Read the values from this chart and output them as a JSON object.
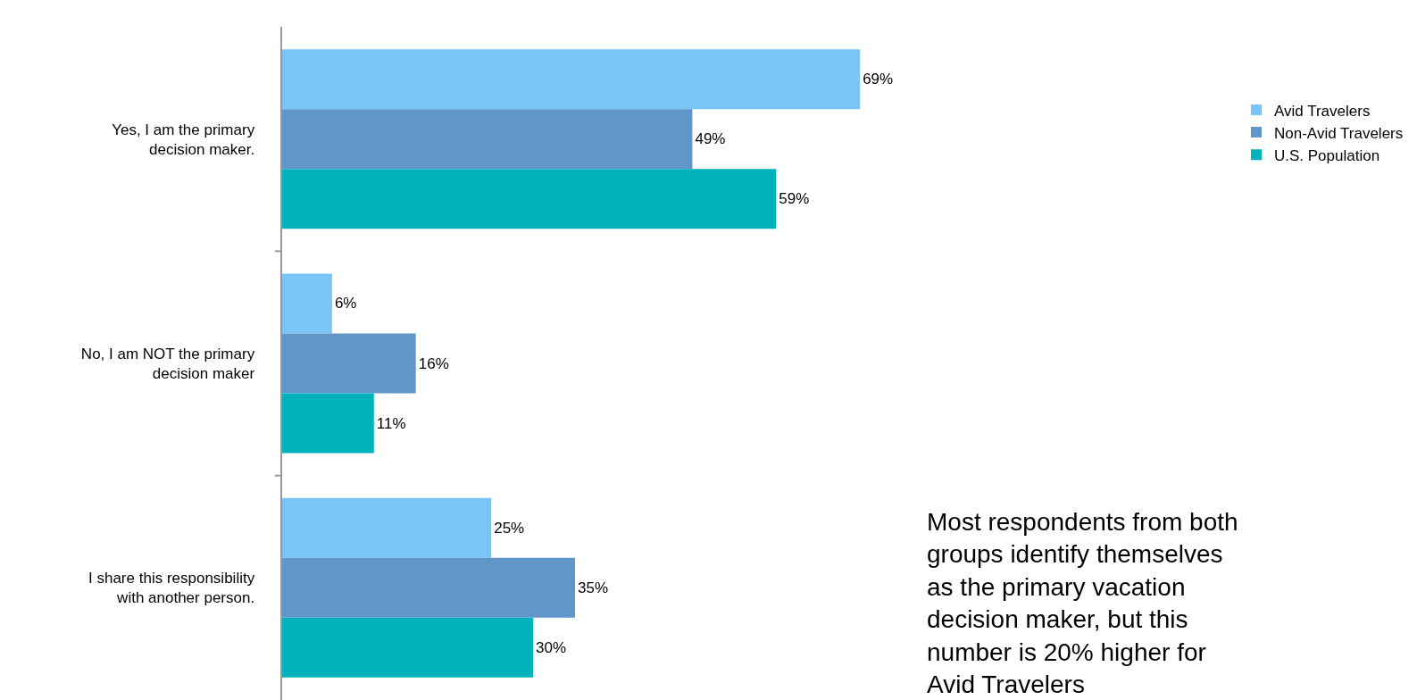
{
  "chart_data": {
    "type": "bar",
    "orientation": "horizontal",
    "categories": [
      "Yes, I am the primary decision maker.",
      "No, I am NOT the primary decision maker",
      "I share this responsibility with another person."
    ],
    "series": [
      {
        "name": "Avid Travelers",
        "color": "#7ac5f5",
        "values": [
          69,
          6,
          25
        ],
        "value_labels": [
          "69%",
          "6%",
          "25%"
        ]
      },
      {
        "name": "Non-Avid Travelers",
        "color": "#6096c9",
        "values": [
          49,
          16,
          35
        ],
        "value_labels": [
          "49%",
          "16%",
          "35%"
        ]
      },
      {
        "name": "U.S. Population",
        "color": "#00b3ba",
        "values": [
          59,
          11,
          30
        ],
        "value_labels": [
          "59%",
          "11%",
          "30%"
        ]
      }
    ],
    "legend": "top right",
    "annotations": [
      "Most respondents from both groups identify themselves as the primary vacation decision maker, but this number is 20% higher for Avid Travelers"
    ]
  }
}
